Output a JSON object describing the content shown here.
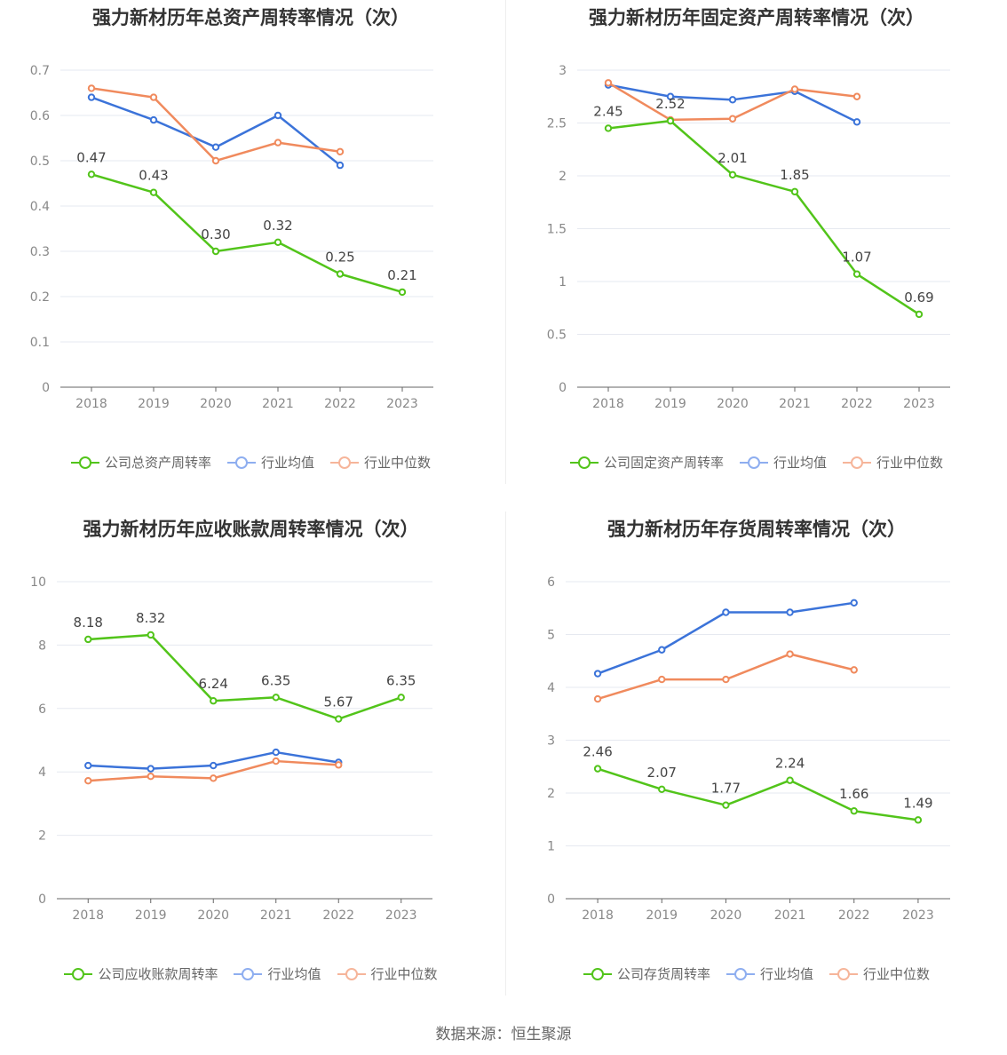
{
  "source_label": "数据来源：恒生聚源",
  "colors": {
    "company": "#52c41a",
    "avg": "#3b73d9",
    "median": "#f08a5d"
  },
  "charts": [
    {
      "title": "强力新材历年总资产周转率情况（次）",
      "legend": [
        "公司总资产周转率",
        "行业均值",
        "行业中位数"
      ],
      "y_ticks": [
        "0",
        "0.1",
        "0.2",
        "0.3",
        "0.4",
        "0.5",
        "0.6",
        "0.7"
      ]
    },
    {
      "title": "强力新材历年固定资产周转率情况（次）",
      "legend": [
        "公司固定资产周转率",
        "行业均值",
        "行业中位数"
      ],
      "y_ticks": [
        "0",
        "0.5",
        "1",
        "1.5",
        "2",
        "2.5",
        "3"
      ]
    },
    {
      "title": "强力新材历年应收账款周转率情况（次）",
      "legend": [
        "公司应收账款周转率",
        "行业均值",
        "行业中位数"
      ],
      "y_ticks": [
        "0",
        "2",
        "4",
        "6",
        "8",
        "10"
      ]
    },
    {
      "title": "强力新材历年存货周转率情况（次）",
      "legend": [
        "公司存货周转率",
        "行业均值",
        "行业中位数"
      ],
      "y_ticks": [
        "0",
        "1",
        "2",
        "3",
        "4",
        "5",
        "6"
      ]
    }
  ],
  "chart_data": [
    {
      "type": "line",
      "title": "强力新材历年总资产周转率情况（次）",
      "x": [
        "2018",
        "2019",
        "2020",
        "2021",
        "2022",
        "2023"
      ],
      "ylim": [
        0,
        0.7
      ],
      "legend_position": "bottom",
      "grid": true,
      "series": [
        {
          "name": "公司总资产周转率",
          "values": [
            0.47,
            0.43,
            0.3,
            0.32,
            0.25,
            0.21
          ],
          "labels": [
            "0.47",
            "0.43",
            "0.30",
            "0.32",
            "0.25",
            "0.21"
          ]
        },
        {
          "name": "行业均值",
          "values": [
            0.64,
            0.59,
            0.53,
            0.6,
            0.49,
            null
          ]
        },
        {
          "name": "行业中位数",
          "values": [
            0.66,
            0.64,
            0.5,
            0.54,
            0.52,
            null
          ]
        }
      ]
    },
    {
      "type": "line",
      "title": "强力新材历年固定资产周转率情况（次）",
      "x": [
        "2018",
        "2019",
        "2020",
        "2021",
        "2022",
        "2023"
      ],
      "ylim": [
        0,
        3
      ],
      "legend_position": "bottom",
      "grid": true,
      "series": [
        {
          "name": "公司固定资产周转率",
          "values": [
            2.45,
            2.52,
            2.01,
            1.85,
            1.07,
            0.69
          ],
          "labels": [
            "2.45",
            "2.52",
            "2.01",
            "1.85",
            "1.07",
            "0.69"
          ]
        },
        {
          "name": "行业均值",
          "values": [
            2.86,
            2.75,
            2.72,
            2.8,
            2.51,
            null
          ]
        },
        {
          "name": "行业中位数",
          "values": [
            2.88,
            2.53,
            2.54,
            2.82,
            2.75,
            null
          ]
        }
      ]
    },
    {
      "type": "line",
      "title": "强力新材历年应收账款周转率情况（次）",
      "x": [
        "2018",
        "2019",
        "2020",
        "2021",
        "2022",
        "2023"
      ],
      "ylim": [
        0,
        10
      ],
      "legend_position": "bottom",
      "grid": true,
      "series": [
        {
          "name": "公司应收账款周转率",
          "values": [
            8.18,
            8.32,
            6.24,
            6.35,
            5.67,
            6.35
          ],
          "labels": [
            "8.18",
            "8.32",
            "6.24",
            "6.35",
            "5.67",
            "6.35"
          ]
        },
        {
          "name": "行业均值",
          "values": [
            4.2,
            4.1,
            4.2,
            4.62,
            4.3,
            null
          ]
        },
        {
          "name": "行业中位数",
          "values": [
            3.72,
            3.86,
            3.8,
            4.34,
            4.22,
            null
          ]
        }
      ]
    },
    {
      "type": "line",
      "title": "强力新材历年存货周转率情况（次）",
      "x": [
        "2018",
        "2019",
        "2020",
        "2021",
        "2022",
        "2023"
      ],
      "ylim": [
        0,
        6
      ],
      "legend_position": "bottom",
      "grid": true,
      "series": [
        {
          "name": "公司存货周转率",
          "values": [
            2.46,
            2.07,
            1.77,
            2.24,
            1.66,
            1.49
          ],
          "labels": [
            "2.46",
            "2.07",
            "1.77",
            "2.24",
            "1.66",
            "1.49"
          ]
        },
        {
          "name": "行业均值",
          "values": [
            4.26,
            4.71,
            5.42,
            5.42,
            5.6,
            null
          ]
        },
        {
          "name": "行业中位数",
          "values": [
            3.78,
            4.15,
            4.15,
            4.63,
            4.33,
            null
          ]
        }
      ]
    }
  ]
}
